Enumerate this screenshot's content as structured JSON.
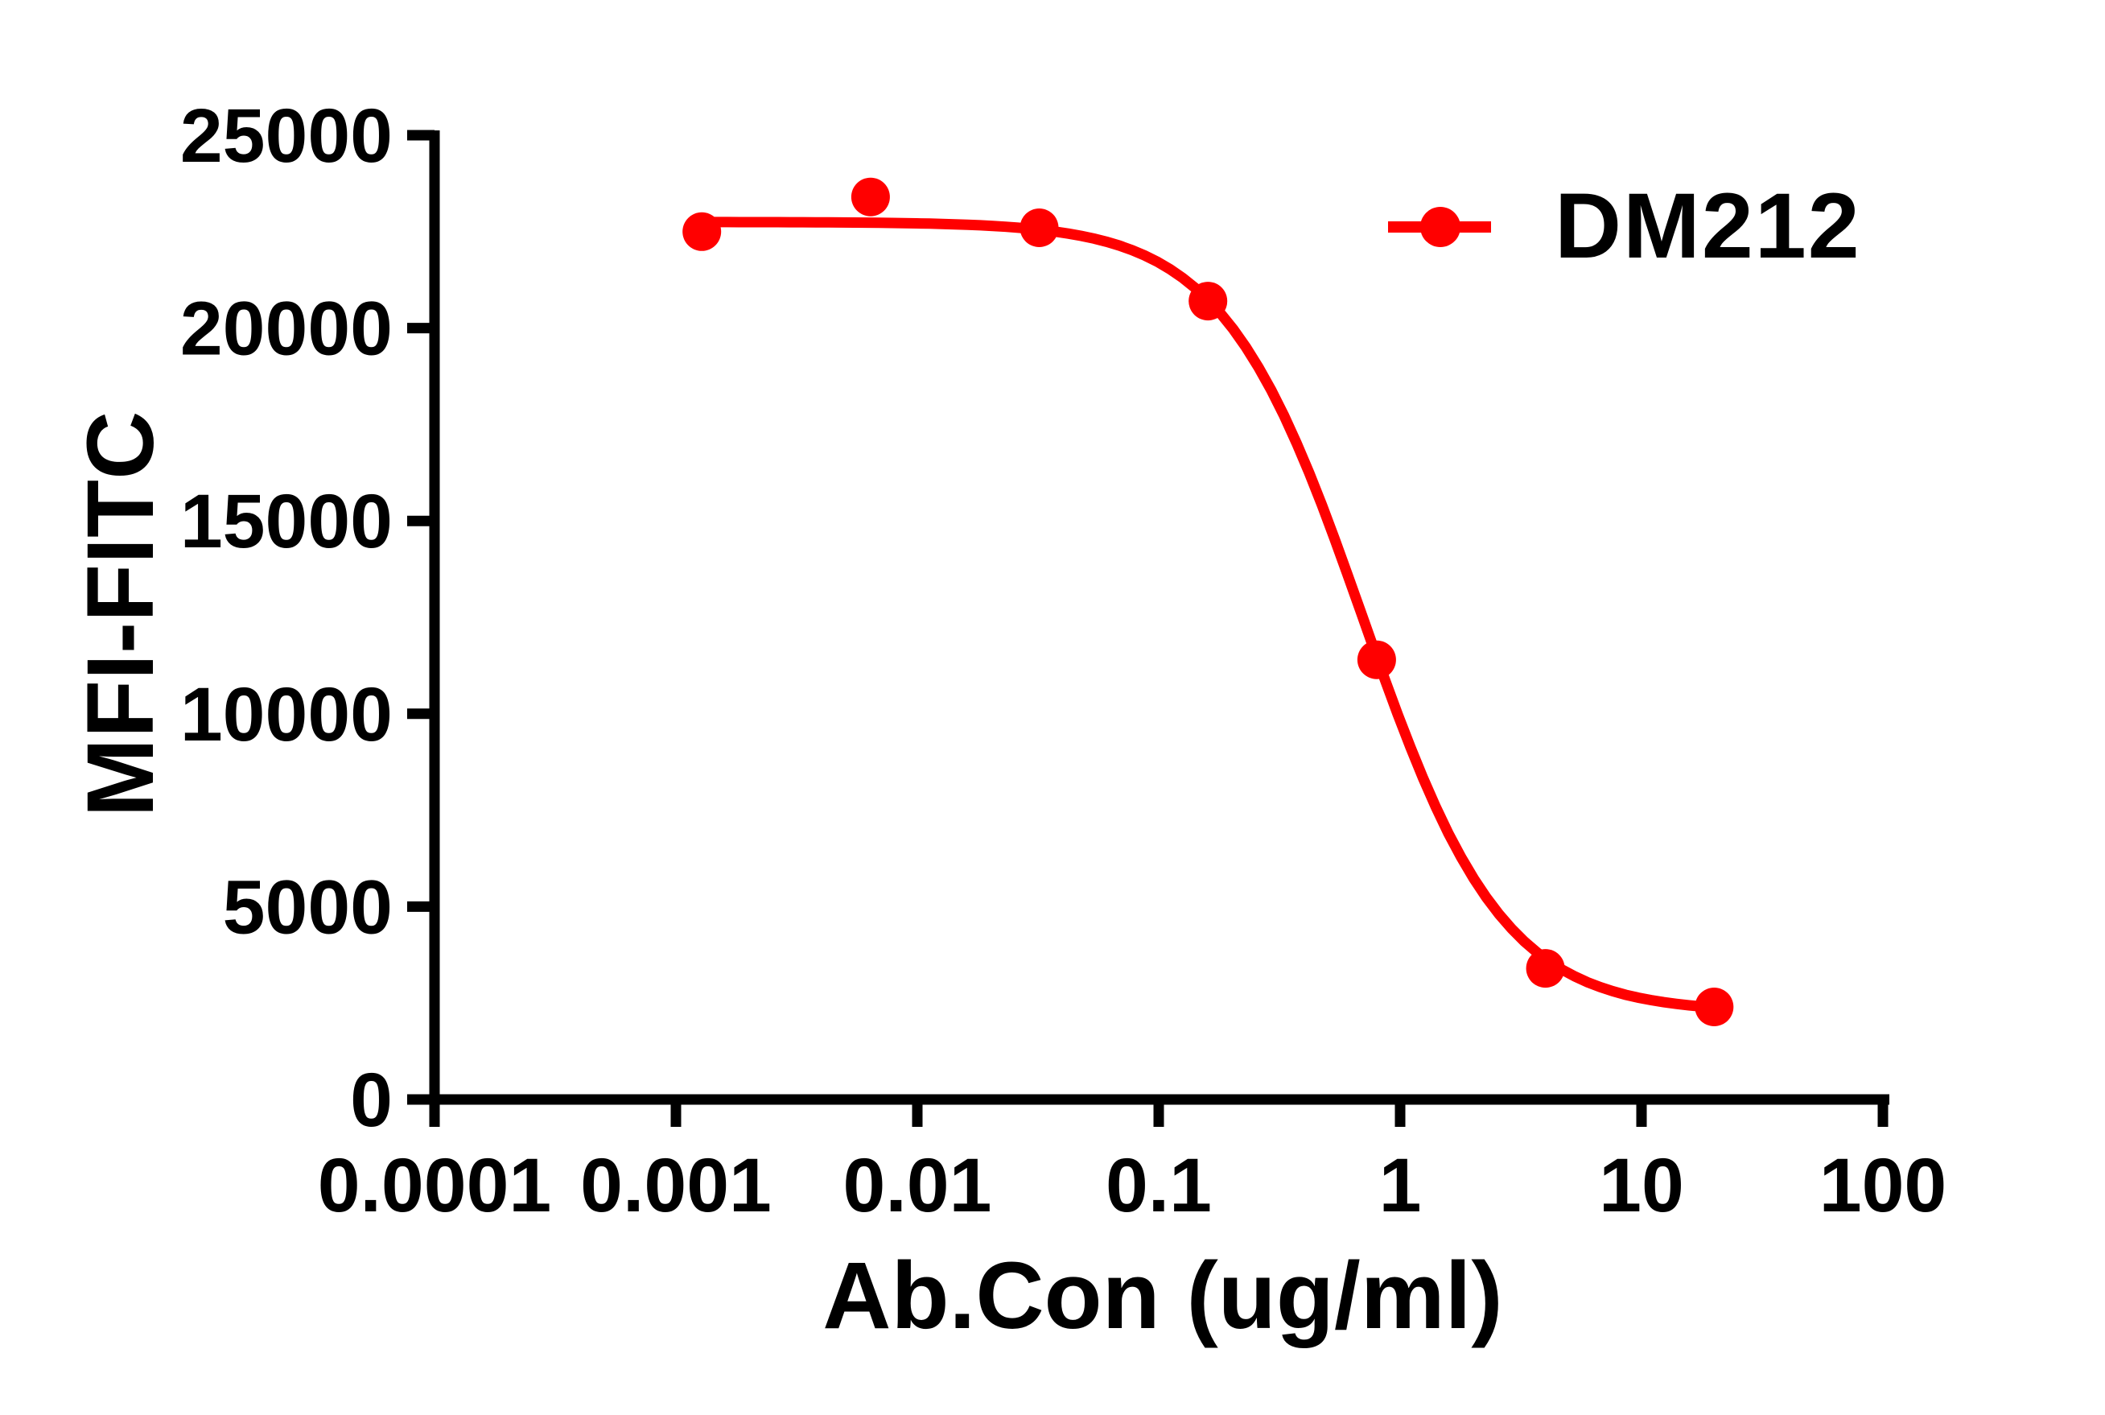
{
  "chart_data": {
    "type": "line",
    "subtype": "dose-response-scatter-with-fit",
    "title": "",
    "xlabel": "Ab.Con (ug/ml)",
    "ylabel": "MFI-FITC",
    "x_scale": "log10",
    "x_range": [
      0.0001,
      100
    ],
    "ylim": [
      0,
      25000
    ],
    "grid": "off",
    "x_tick_labels": [
      "0.0001",
      "0.001",
      "0.01",
      "0.1",
      "1",
      "10",
      "100"
    ],
    "x_tick_values": [
      0.0001,
      0.001,
      0.01,
      0.1,
      1,
      10,
      100
    ],
    "y_tick_labels": [
      "0",
      "5000",
      "10000",
      "15000",
      "20000",
      "25000"
    ],
    "y_tick_values": [
      0,
      5000,
      10000,
      15000,
      20000,
      25000
    ],
    "legend_position": "top-right-inside",
    "colors": {
      "axis": "#000000",
      "series": "#FF0000",
      "background": "#FFFFFF"
    },
    "series": [
      {
        "name": "DM212",
        "color": "#FF0000",
        "marker": "filled-circle",
        "x": [
          0.00128,
          0.0064,
          0.032,
          0.16,
          0.8,
          4,
          20
        ],
        "y": [
          22500,
          23400,
          22600,
          20700,
          11400,
          3400,
          2400
        ],
        "fit_curve": {
          "model": "four-parameter-logistic-inhibition",
          "top": 22750,
          "bottom": 2250,
          "ic50": 0.7,
          "hill": 1.5
        }
      }
    ]
  }
}
